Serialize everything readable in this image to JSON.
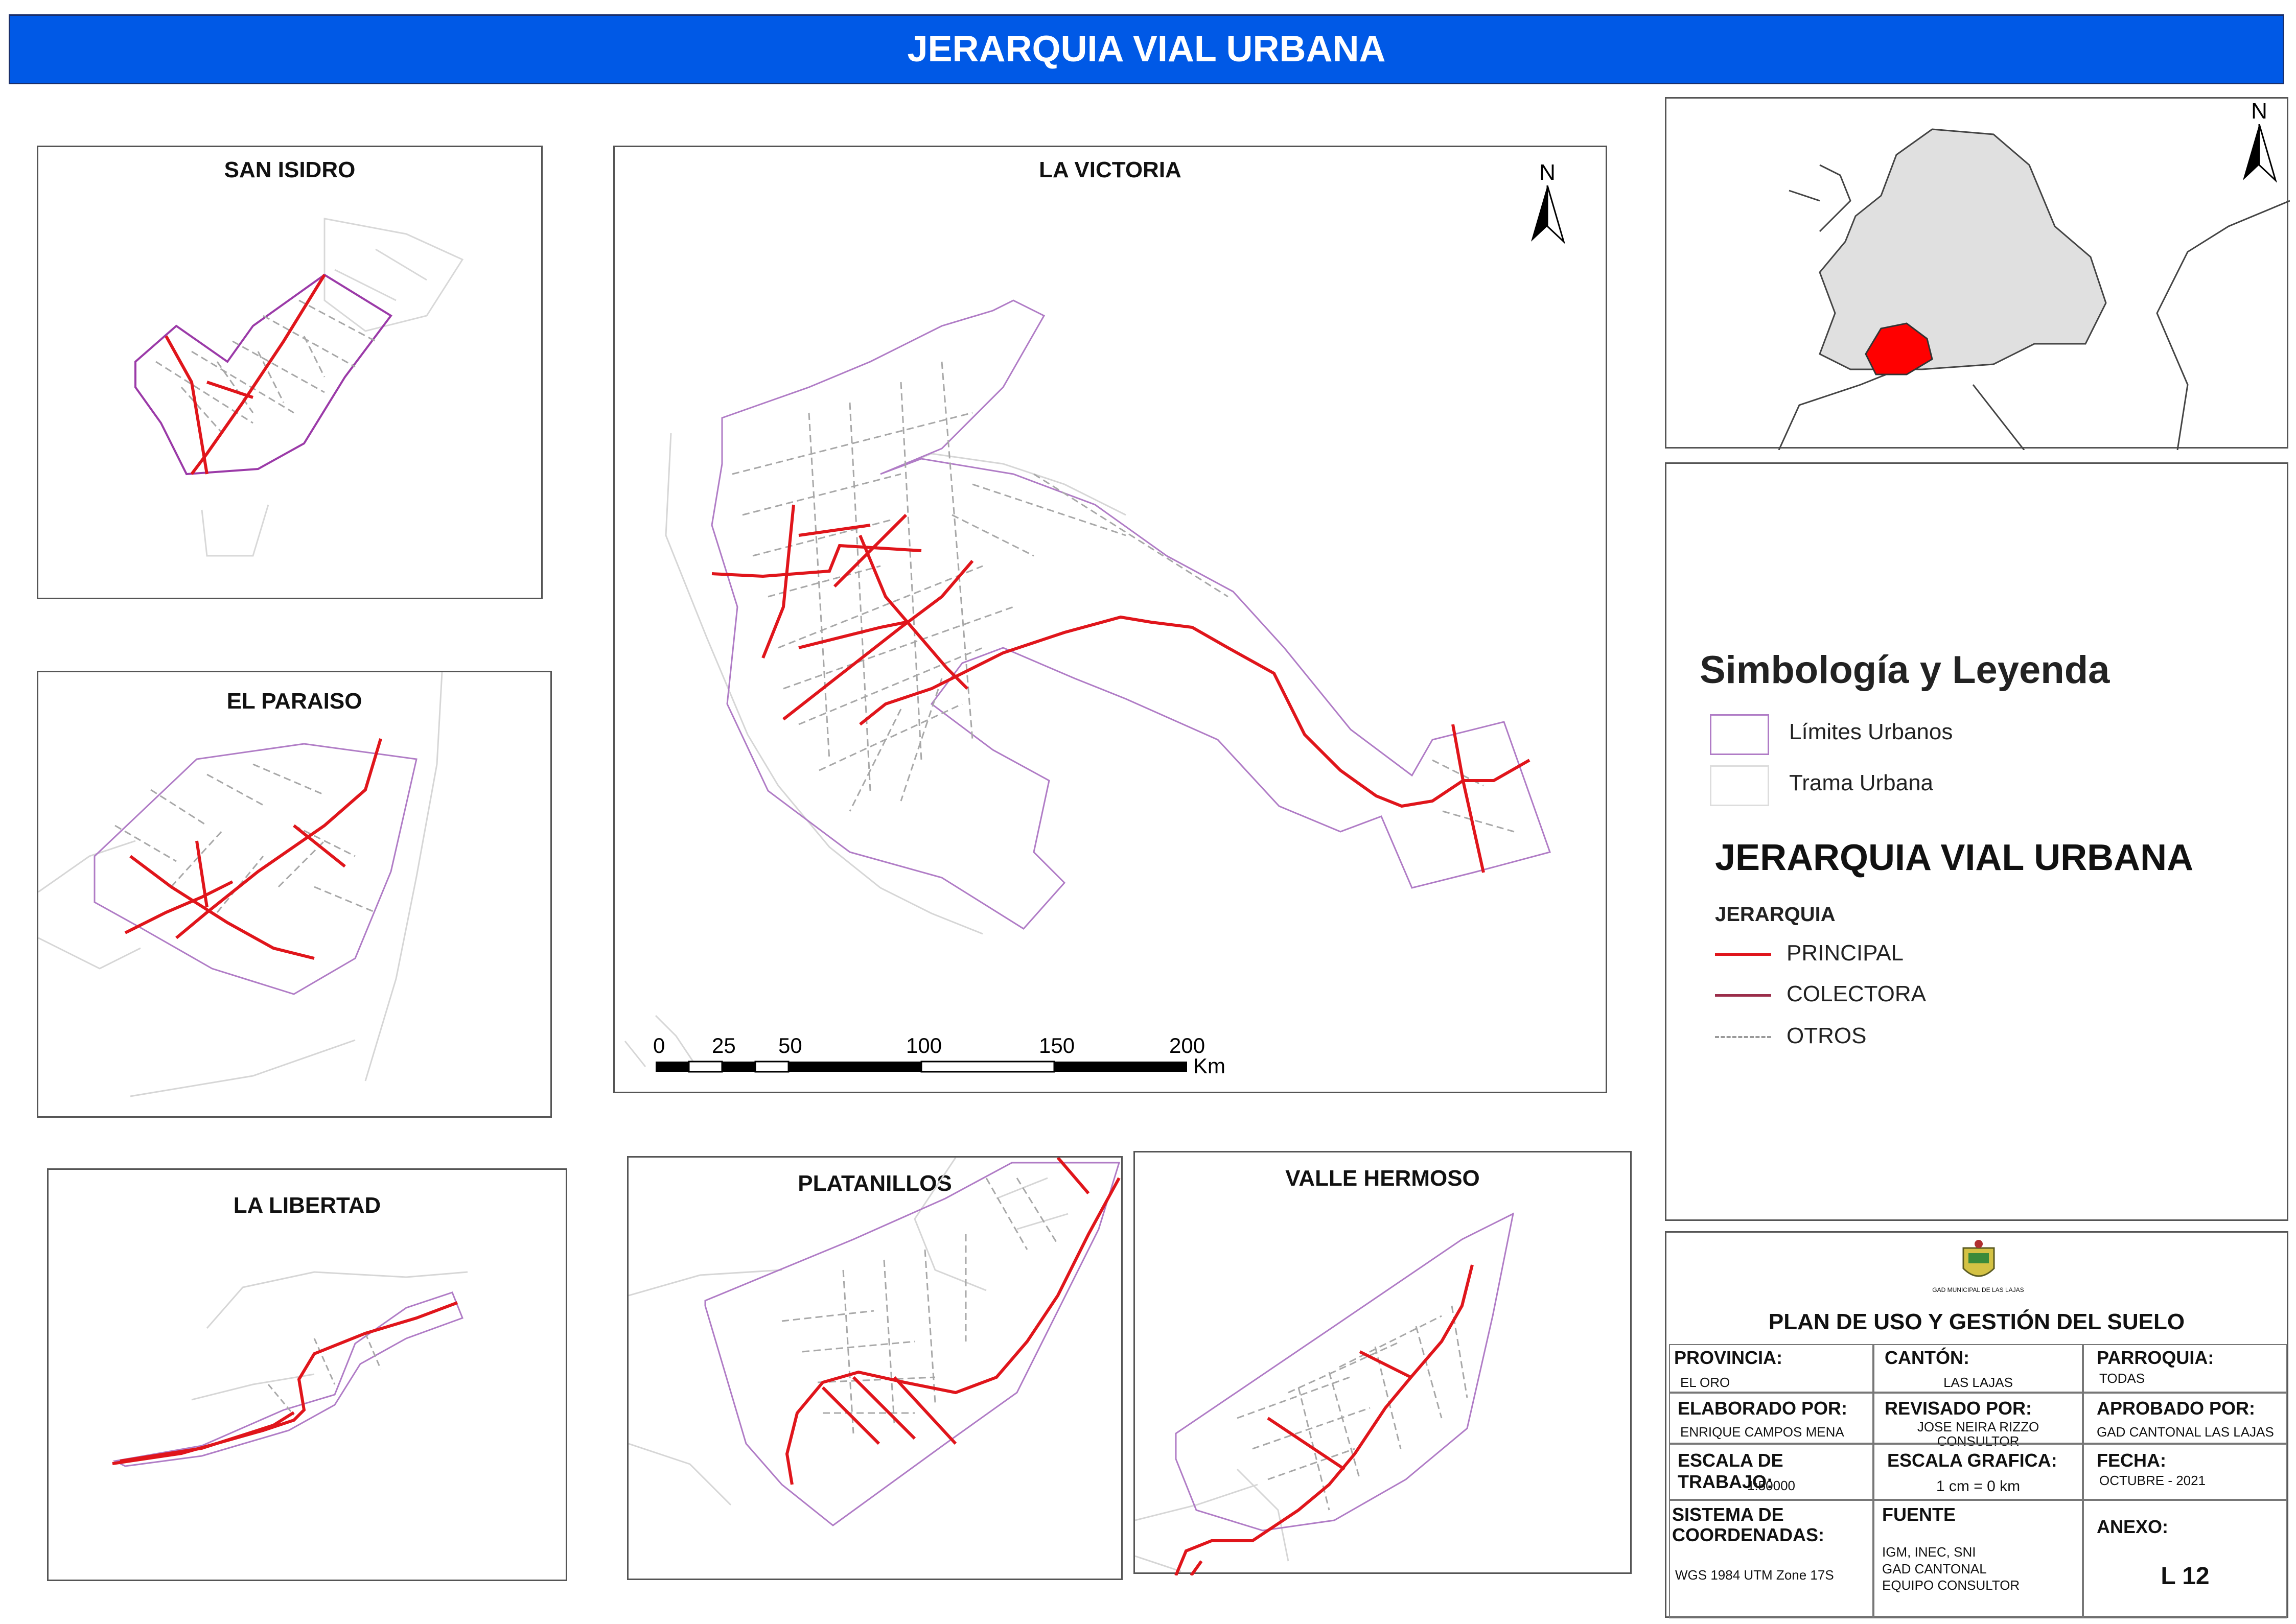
{
  "header": {
    "title": "JERARQUIA VIAL URBANA"
  },
  "panels": {
    "san_isidro": "SAN ISIDRO",
    "la_victoria": "LA VICTORIA",
    "el_paraiso": "EL PARAISO",
    "la_libertad": "LA LIBERTAD",
    "platanillos": "PLATANILLOS",
    "valle_hermoso": "VALLE HERMOSO"
  },
  "north_label": "N",
  "scale_bar": {
    "ticks": [
      "0",
      "25",
      "50",
      "100",
      "150",
      "200"
    ],
    "unit": "Km"
  },
  "legend": {
    "heading": "Simbología y Leyenda",
    "items": [
      {
        "label": "Límites Urbanos",
        "color": "#b07cc6"
      },
      {
        "label": "Trama Urbana",
        "color": "#dddddd"
      }
    ],
    "title": "JERARQUIA VIAL URBANA",
    "subtitle": "JERARQUIA",
    "lines": [
      {
        "label": "PRINCIPAL",
        "color": "#e0151b"
      },
      {
        "label": "COLECTORA",
        "color": "#9b2d4a"
      },
      {
        "label": "OTROS",
        "color": "#9a9a9a"
      }
    ]
  },
  "info": {
    "logo_text": "GAD MUNICIPAL DE LAS LAJAS",
    "plan_title": "PLAN DE USO Y GESTIÓN DEL SUELO",
    "provincia_label": "PROVINCIA:",
    "provincia": "EL ORO",
    "canton_label": "CANTÓN:",
    "canton": "LAS LAJAS",
    "parroquia_label": "PARROQUIA:",
    "parroquia": "TODAS",
    "elaborado_label": "ELABORADO POR:",
    "elaborado": "ENRIQUE CAMPOS MENA",
    "revisado_label": "REVISADO POR:",
    "revisado_1": "JOSE NEIRA RIZZO",
    "revisado_2": "CONSULTOR",
    "aprobado_label": "APROBADO POR:",
    "aprobado": "GAD CANTONAL LAS LAJAS",
    "escala_trabajo_label": "ESCALA DE TRABAJO:",
    "escala_trabajo": "1:50000",
    "escala_grafica_label": "ESCALA GRAFICA:",
    "escala_grafica": "1 cm = 0 km",
    "fecha_label": "FECHA:",
    "fecha": "OCTUBRE - 2021",
    "sistema_label_1": "SISTEMA DE",
    "sistema_label_2": "COORDENADAS:",
    "sistema": "WGS 1984 UTM Zone 17S",
    "fuente_label": "FUENTE",
    "fuente_1": "IGM, INEC, SNI",
    "fuente_2": "GAD CANTONAL",
    "fuente_3": "EQUIPO CONSULTOR",
    "anexo_label": "ANEXO:",
    "anexo": "L 12"
  }
}
